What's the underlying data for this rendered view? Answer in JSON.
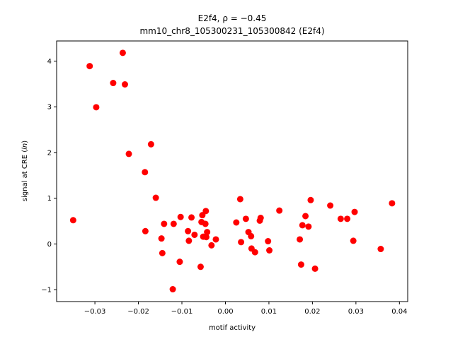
{
  "chart_data": {
    "type": "scatter",
    "title_line1": "E2f4, ρ = −0.45",
    "title_line2": "mm10_chr8_105300231_105300842 (E2f4)",
    "xlabel": "motif activity",
    "ylabel": "signal at CRE (ln)",
    "xlim": [
      -0.0388,
      0.0419
    ],
    "ylim": [
      -1.26,
      4.44
    ],
    "xticks": [
      -0.03,
      -0.02,
      -0.01,
      0.0,
      0.01,
      0.02,
      0.03,
      0.04
    ],
    "xtick_labels": [
      "−0.03",
      "−0.02",
      "−0.01",
      "0.00",
      "0.01",
      "0.02",
      "0.03",
      "0.04"
    ],
    "yticks": [
      -1,
      0,
      1,
      2,
      3,
      4
    ],
    "ytick_labels": [
      "−1",
      "0",
      "1",
      "2",
      "3",
      "4"
    ],
    "grid": false,
    "marker_color": "#ff0000",
    "points": [
      {
        "x": -0.035,
        "y": 0.52
      },
      {
        "x": -0.0312,
        "y": 3.89
      },
      {
        "x": -0.0297,
        "y": 2.99
      },
      {
        "x": -0.0258,
        "y": 3.52
      },
      {
        "x": -0.0236,
        "y": 4.18
      },
      {
        "x": -0.0231,
        "y": 3.49
      },
      {
        "x": -0.0222,
        "y": 1.97
      },
      {
        "x": -0.0185,
        "y": 1.57
      },
      {
        "x": -0.0184,
        "y": 0.28
      },
      {
        "x": -0.0171,
        "y": 2.18
      },
      {
        "x": -0.016,
        "y": 1.01
      },
      {
        "x": -0.0147,
        "y": 0.12
      },
      {
        "x": -0.0145,
        "y": -0.2
      },
      {
        "x": -0.0141,
        "y": 0.44
      },
      {
        "x": -0.0121,
        "y": -0.99
      },
      {
        "x": -0.0119,
        "y": 0.44
      },
      {
        "x": -0.0105,
        "y": -0.39
      },
      {
        "x": -0.0103,
        "y": 0.59
      },
      {
        "x": -0.0086,
        "y": 0.28
      },
      {
        "x": -0.0084,
        "y": 0.07
      },
      {
        "x": -0.0078,
        "y": 0.58
      },
      {
        "x": -0.0071,
        "y": 0.2
      },
      {
        "x": -0.0057,
        "y": -0.5
      },
      {
        "x": -0.0055,
        "y": 0.48
      },
      {
        "x": -0.0053,
        "y": 0.63
      },
      {
        "x": -0.0051,
        "y": 0.16
      },
      {
        "x": -0.0046,
        "y": 0.44
      },
      {
        "x": -0.0045,
        "y": 0.72
      },
      {
        "x": -0.0044,
        "y": 0.15
      },
      {
        "x": -0.0042,
        "y": 0.26
      },
      {
        "x": -0.0032,
        "y": -0.03
      },
      {
        "x": -0.0022,
        "y": 0.1
      },
      {
        "x": 0.0025,
        "y": 0.47
      },
      {
        "x": 0.0034,
        "y": 0.98
      },
      {
        "x": 0.0036,
        "y": 0.04
      },
      {
        "x": 0.0047,
        "y": 0.55
      },
      {
        "x": 0.0053,
        "y": 0.26
      },
      {
        "x": 0.0059,
        "y": 0.17
      },
      {
        "x": 0.006,
        "y": -0.1
      },
      {
        "x": 0.0068,
        "y": -0.18
      },
      {
        "x": 0.0079,
        "y": 0.51
      },
      {
        "x": 0.0081,
        "y": 0.57
      },
      {
        "x": 0.0098,
        "y": 0.06
      },
      {
        "x": 0.0101,
        "y": -0.14
      },
      {
        "x": 0.0124,
        "y": 0.73
      },
      {
        "x": 0.0171,
        "y": 0.1
      },
      {
        "x": 0.0174,
        "y": -0.45
      },
      {
        "x": 0.0177,
        "y": 0.41
      },
      {
        "x": 0.0184,
        "y": 0.61
      },
      {
        "x": 0.0191,
        "y": 0.38
      },
      {
        "x": 0.0196,
        "y": 0.96
      },
      {
        "x": 0.0206,
        "y": -0.54
      },
      {
        "x": 0.0241,
        "y": 0.84
      },
      {
        "x": 0.0265,
        "y": 0.55
      },
      {
        "x": 0.028,
        "y": 0.55
      },
      {
        "x": 0.0294,
        "y": 0.07
      },
      {
        "x": 0.0297,
        "y": 0.7
      },
      {
        "x": 0.0357,
        "y": -0.11
      },
      {
        "x": 0.0383,
        "y": 0.89
      }
    ]
  }
}
